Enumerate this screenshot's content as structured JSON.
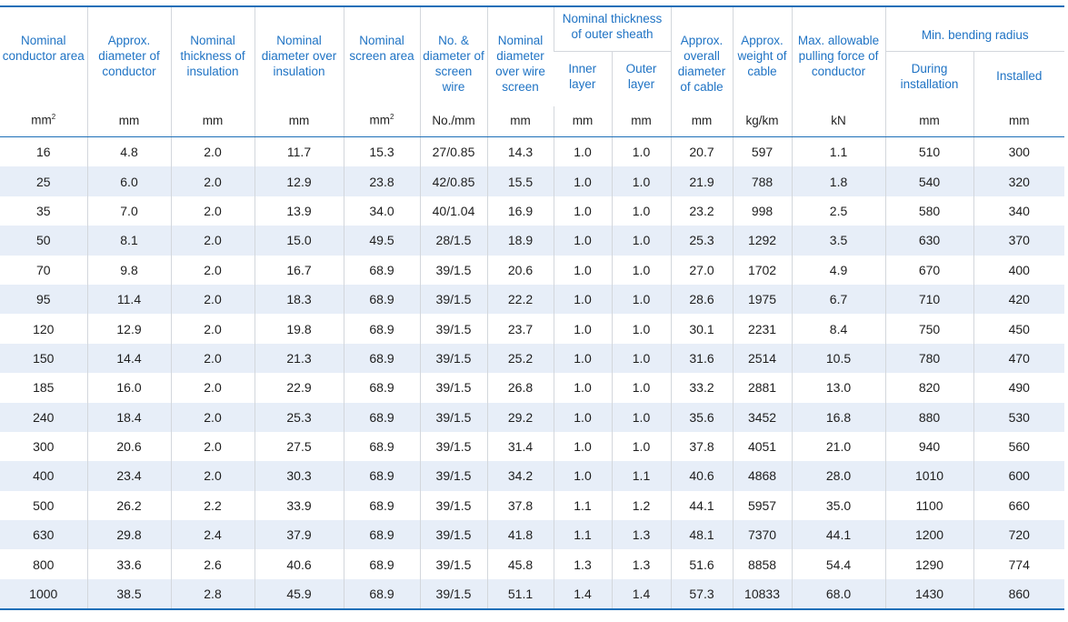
{
  "headers": {
    "c1": "Nominal conductor area",
    "c2": "Approx. diameter of conductor",
    "c3": "Nominal thickness of insulation",
    "c4": "Nominal diameter over insulation",
    "c5": "Nominal screen area",
    "c6": "No. & diameter of screen wire",
    "c7": "Nominal diameter over wire screen",
    "c8_group": "Nominal thickness of outer sheath",
    "c8a": "Inner layer",
    "c8b": "Outer layer",
    "c9": "Approx. overall diameter of cable",
    "c10": "Approx. weight of cable",
    "c11": "Max. allowable pulling force of conductor",
    "c12_group": "Min. bending radius",
    "c12a": "During installation",
    "c12b": "Installed"
  },
  "units": {
    "c1": "mm",
    "c1_sup": "2",
    "c2": "mm",
    "c3": "mm",
    "c4": "mm",
    "c5": "mm",
    "c5_sup": "2",
    "c6": "No./mm",
    "c7": "mm",
    "c8a": "mm",
    "c8b": "mm",
    "c9": "mm",
    "c10": "kg/km",
    "c11": "kN",
    "c12a": "mm",
    "c12b": "mm"
  },
  "rows": [
    [
      "16",
      "4.8",
      "2.0",
      "11.7",
      "15.3",
      "27/0.85",
      "14.3",
      "1.0",
      "1.0",
      "20.7",
      "597",
      "1.1",
      "510",
      "300"
    ],
    [
      "25",
      "6.0",
      "2.0",
      "12.9",
      "23.8",
      "42/0.85",
      "15.5",
      "1.0",
      "1.0",
      "21.9",
      "788",
      "1.8",
      "540",
      "320"
    ],
    [
      "35",
      "7.0",
      "2.0",
      "13.9",
      "34.0",
      "40/1.04",
      "16.9",
      "1.0",
      "1.0",
      "23.2",
      "998",
      "2.5",
      "580",
      "340"
    ],
    [
      "50",
      "8.1",
      "2.0",
      "15.0",
      "49.5",
      "28/1.5",
      "18.9",
      "1.0",
      "1.0",
      "25.3",
      "1292",
      "3.5",
      "630",
      "370"
    ],
    [
      "70",
      "9.8",
      "2.0",
      "16.7",
      "68.9",
      "39/1.5",
      "20.6",
      "1.0",
      "1.0",
      "27.0",
      "1702",
      "4.9",
      "670",
      "400"
    ],
    [
      "95",
      "11.4",
      "2.0",
      "18.3",
      "68.9",
      "39/1.5",
      "22.2",
      "1.0",
      "1.0",
      "28.6",
      "1975",
      "6.7",
      "710",
      "420"
    ],
    [
      "120",
      "12.9",
      "2.0",
      "19.8",
      "68.9",
      "39/1.5",
      "23.7",
      "1.0",
      "1.0",
      "30.1",
      "2231",
      "8.4",
      "750",
      "450"
    ],
    [
      "150",
      "14.4",
      "2.0",
      "21.3",
      "68.9",
      "39/1.5",
      "25.2",
      "1.0",
      "1.0",
      "31.6",
      "2514",
      "10.5",
      "780",
      "470"
    ],
    [
      "185",
      "16.0",
      "2.0",
      "22.9",
      "68.9",
      "39/1.5",
      "26.8",
      "1.0",
      "1.0",
      "33.2",
      "2881",
      "13.0",
      "820",
      "490"
    ],
    [
      "240",
      "18.4",
      "2.0",
      "25.3",
      "68.9",
      "39/1.5",
      "29.2",
      "1.0",
      "1.0",
      "35.6",
      "3452",
      "16.8",
      "880",
      "530"
    ],
    [
      "300",
      "20.6",
      "2.0",
      "27.5",
      "68.9",
      "39/1.5",
      "31.4",
      "1.0",
      "1.0",
      "37.8",
      "4051",
      "21.0",
      "940",
      "560"
    ],
    [
      "400",
      "23.4",
      "2.0",
      "30.3",
      "68.9",
      "39/1.5",
      "34.2",
      "1.0",
      "1.1",
      "40.6",
      "4868",
      "28.0",
      "1010",
      "600"
    ],
    [
      "500",
      "26.2",
      "2.2",
      "33.9",
      "68.9",
      "39/1.5",
      "37.8",
      "1.1",
      "1.2",
      "44.1",
      "5957",
      "35.0",
      "1100",
      "660"
    ],
    [
      "630",
      "29.8",
      "2.4",
      "37.9",
      "68.9",
      "39/1.5",
      "41.8",
      "1.1",
      "1.3",
      "48.1",
      "7370",
      "44.1",
      "1200",
      "720"
    ],
    [
      "800",
      "33.6",
      "2.6",
      "40.6",
      "68.9",
      "39/1.5",
      "45.8",
      "1.3",
      "1.3",
      "51.6",
      "8858",
      "54.4",
      "1290",
      "774"
    ],
    [
      "1000",
      "38.5",
      "2.8",
      "45.9",
      "68.9",
      "39/1.5",
      "51.1",
      "1.4",
      "1.4",
      "57.3",
      "10833",
      "68.0",
      "1430",
      "860"
    ]
  ]
}
